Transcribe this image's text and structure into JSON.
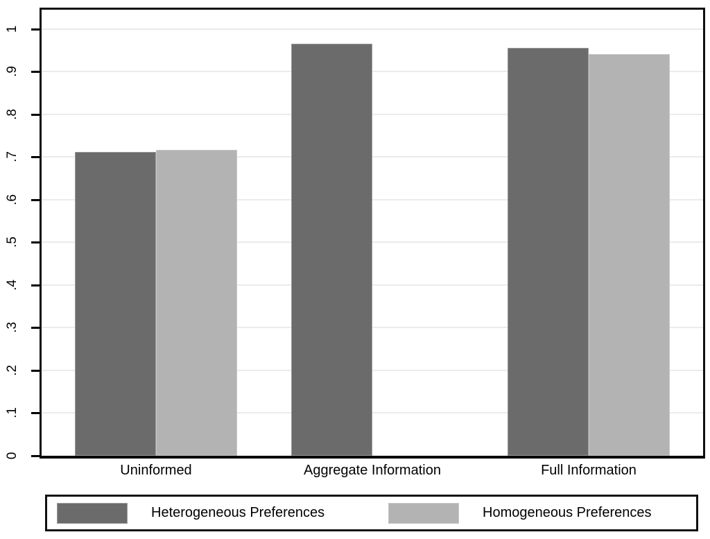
{
  "chart_data": {
    "type": "bar",
    "title": "",
    "categories": [
      "Uninformed",
      "Aggregate Information",
      "Full Information"
    ],
    "series": [
      {
        "name": "Heterogeneous Preferences",
        "color": "#6b6b6b",
        "border_color": "#9b9b9b",
        "values": [
          0.713,
          0.966,
          0.956
        ]
      },
      {
        "name": "Homogeneous Preferences",
        "color": "#b3b3b3",
        "border_color": "#c6c6c6",
        "values": [
          0.717,
          null,
          0.941
        ]
      }
    ],
    "y_axis": {
      "min": 0,
      "max": 1.05,
      "tick_step": 0.1,
      "tick_labels": [
        "0",
        ".1",
        ".2",
        ".3",
        ".4",
        ".5",
        ".6",
        ".7",
        ".8",
        ".9",
        "1"
      ],
      "tick_values": [
        0,
        0.1,
        0.2,
        0.3,
        0.4,
        0.5,
        0.6,
        0.7,
        0.8,
        0.9,
        1.0
      ],
      "label_rotation": -90
    },
    "grid": true,
    "grid_color": "#ebebeb",
    "axis_color": "#000000",
    "legend_position": "bottom"
  }
}
